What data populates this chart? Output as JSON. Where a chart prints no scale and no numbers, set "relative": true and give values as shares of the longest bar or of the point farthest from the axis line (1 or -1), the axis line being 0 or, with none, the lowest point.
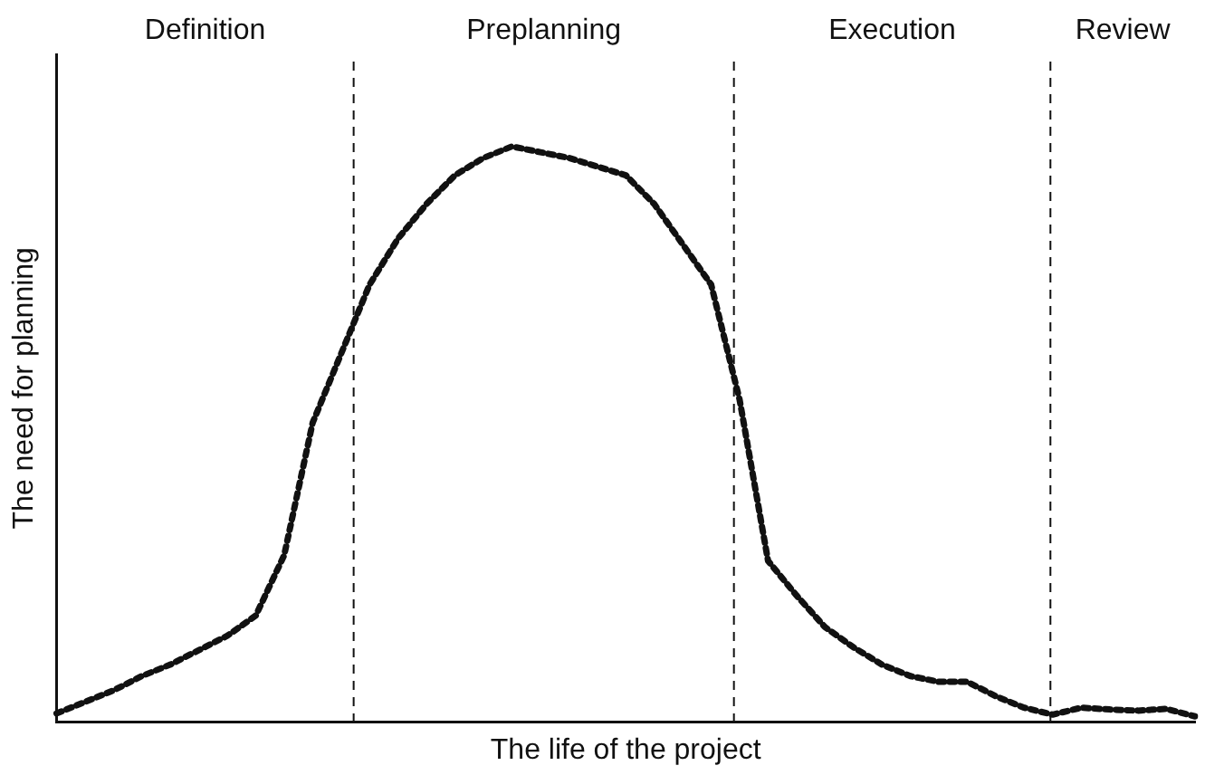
{
  "chart_data": {
    "type": "line",
    "relative": true,
    "xlabel": "The life of the project",
    "ylabel": "The need for planning",
    "marker": "none",
    "line_style": "dotted",
    "categories": [
      null,
      null,
      null,
      null,
      null,
      null,
      null,
      null,
      null,
      null,
      null,
      null,
      null,
      null,
      null,
      null,
      null,
      null,
      null,
      null,
      null,
      null,
      null,
      null,
      null,
      null,
      null,
      null,
      null,
      null,
      null,
      null,
      null,
      null,
      null,
      null,
      null,
      null,
      null,
      null,
      null
    ],
    "series": [
      {
        "color": "#111111",
        "values": [
          0.015,
          0.035,
          0.055,
          0.08,
          0.1,
          0.125,
          0.15,
          0.185,
          0.29,
          0.52,
          0.64,
          0.76,
          0.84,
          0.9,
          0.95,
          0.98,
          1.0,
          0.99,
          0.98,
          0.965,
          0.95,
          0.9,
          0.83,
          0.76,
          0.56,
          0.28,
          0.22,
          0.165,
          0.13,
          0.1,
          0.08,
          0.07,
          0.07,
          0.045,
          0.025,
          0.013,
          0.025,
          0.022,
          0.02,
          0.023,
          0.01
        ]
      }
    ],
    "annotations": [
      "Definition",
      "Preplanning",
      "Execution",
      "Review"
    ]
  }
}
